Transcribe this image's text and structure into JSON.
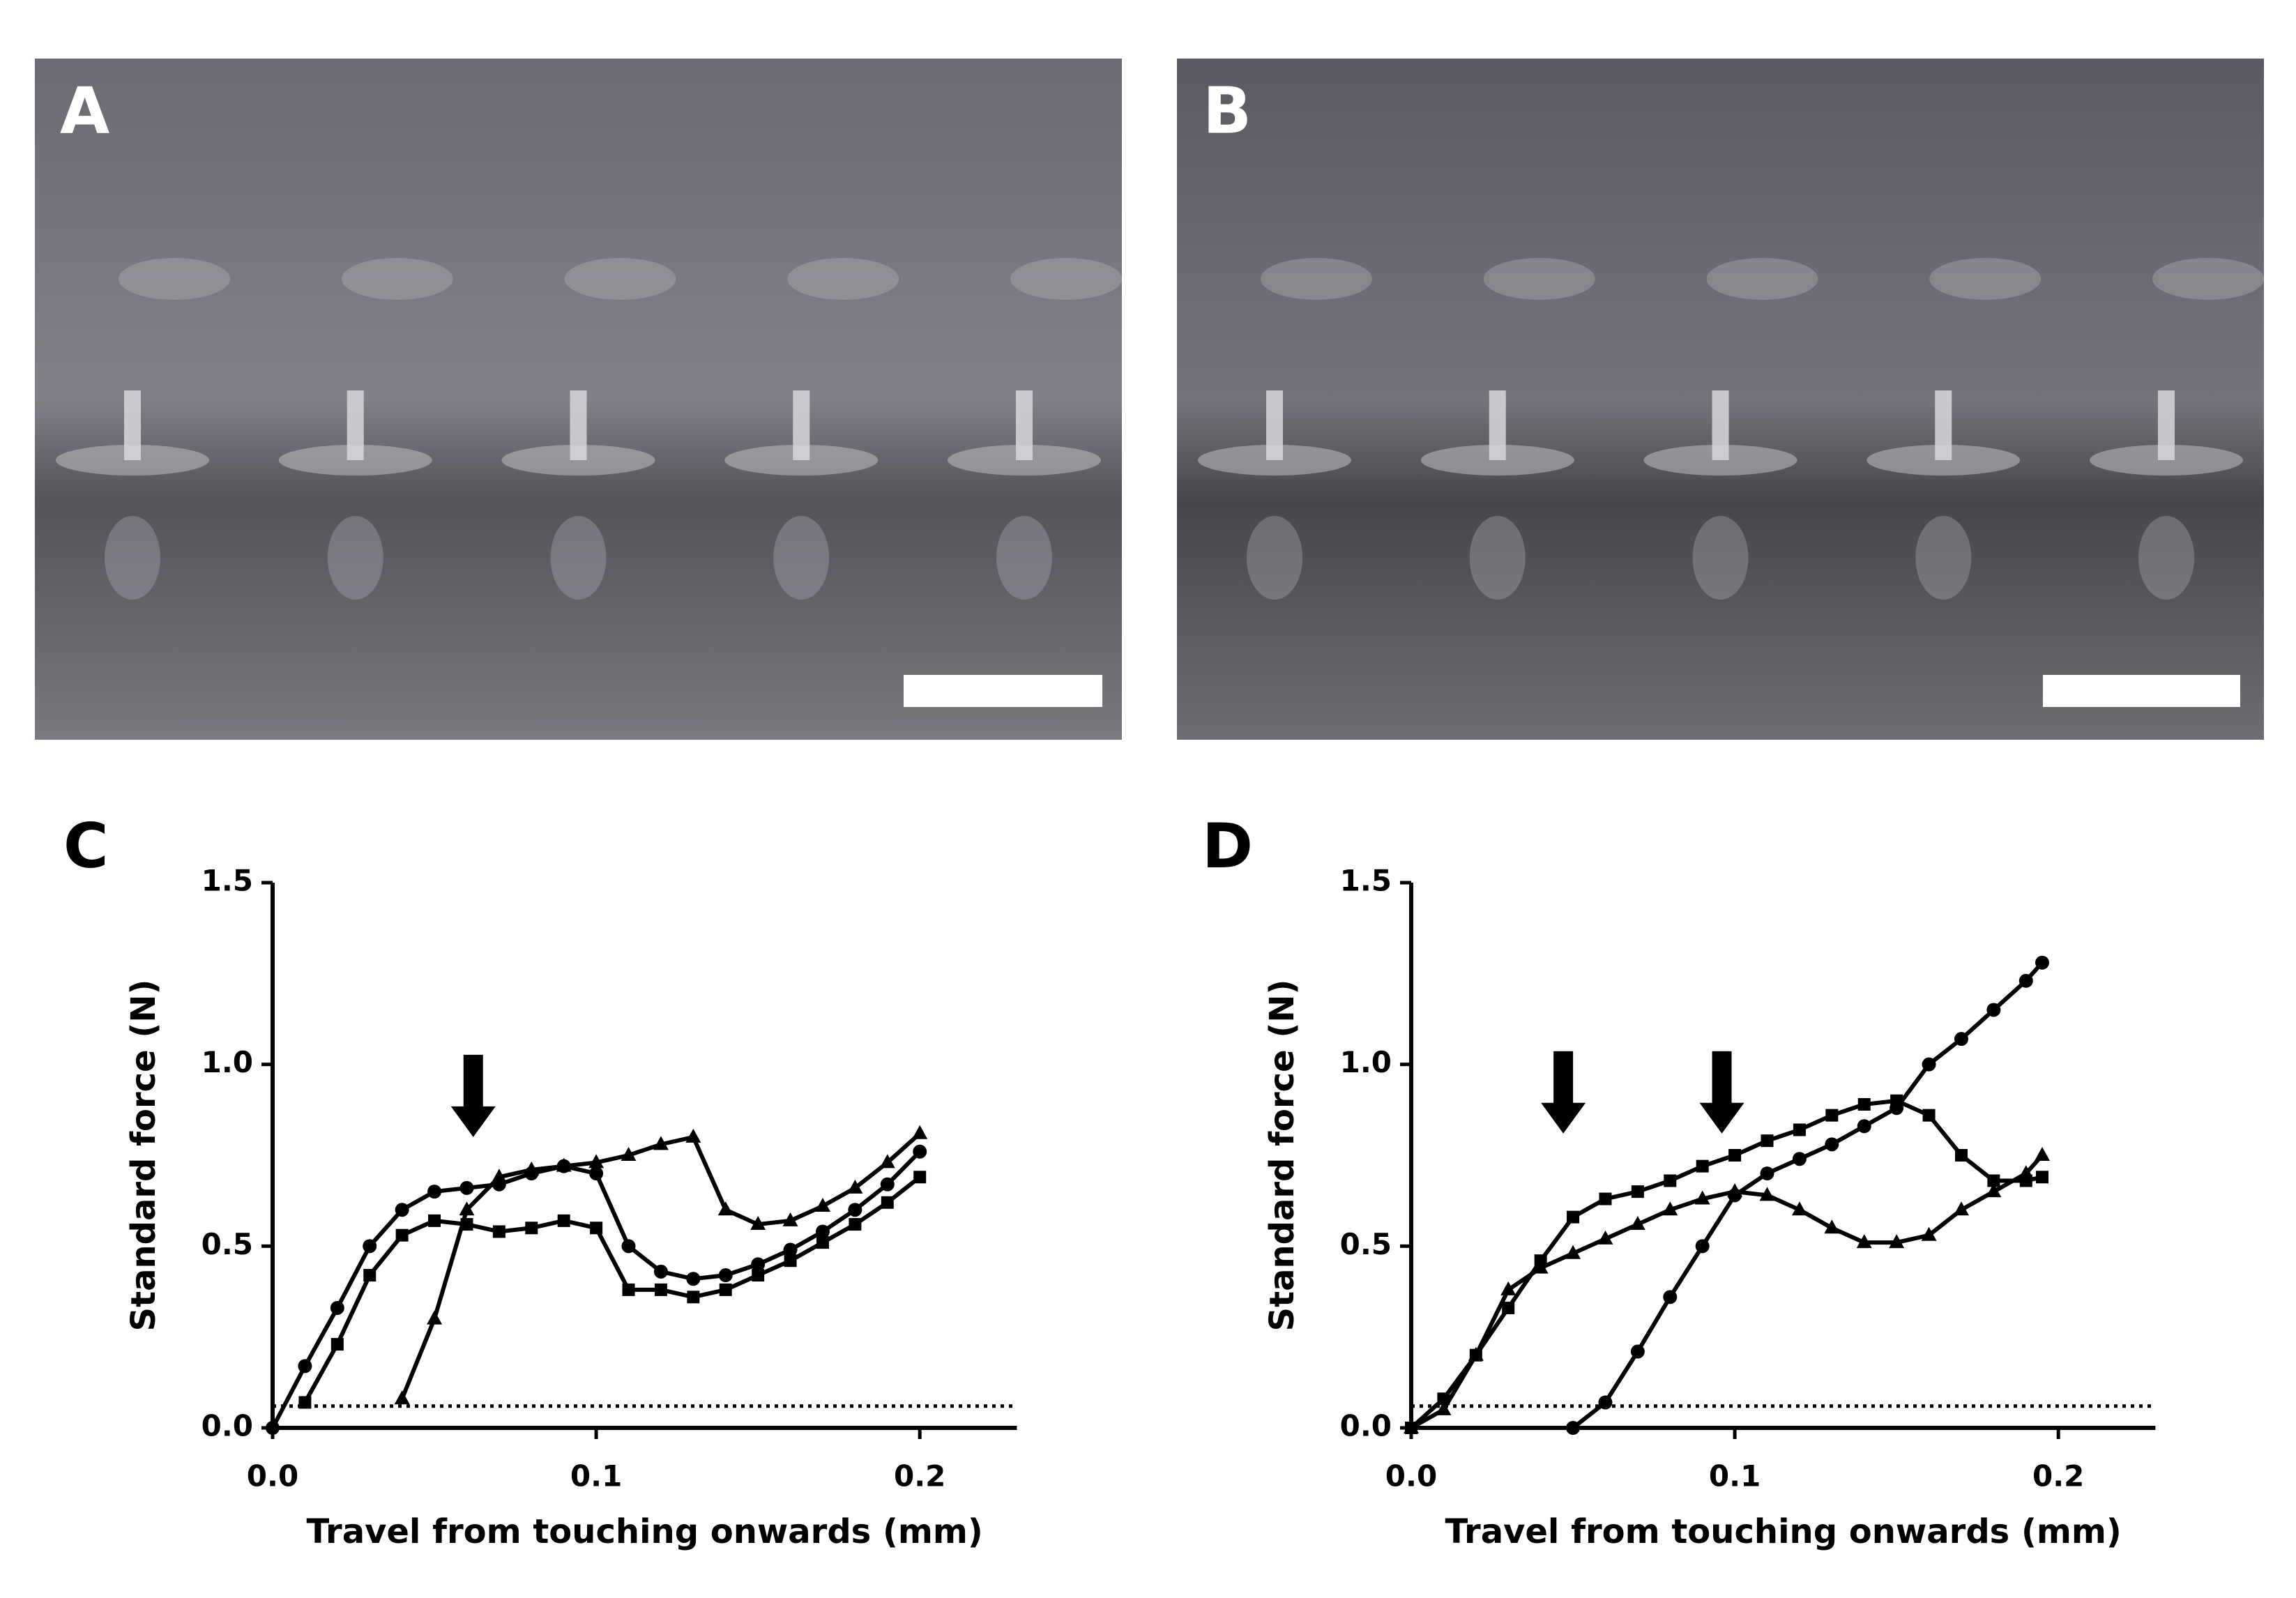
{
  "figure": {
    "panel_labels": [
      "A",
      "B"
    ]
  },
  "chart_data": [
    {
      "type": "line",
      "panel_label": "C",
      "x_label": "Travel from touching onwards (mm)",
      "y_label": "Standard force (N)",
      "xlim": [
        0,
        0.23
      ],
      "ylim": [
        0,
        1.5
      ],
      "xticks": [
        {
          "value": 0,
          "label": "0.0"
        },
        0.1,
        0.2
      ],
      "yticks": [
        {
          "value": 0,
          "label": "0.0"
        },
        0.5,
        {
          "value": 1,
          "label": "1.0"
        },
        1.5
      ],
      "threshold": 0.06,
      "arrows": [
        {
          "x": 0.062,
          "y": 0.8
        }
      ],
      "x": [
        0,
        0.01,
        0.02,
        0.03,
        0.04,
        0.05,
        0.06,
        0.07,
        0.08,
        0.09,
        0.1,
        0.11,
        0.12,
        0.13,
        0.14,
        0.15,
        0.16,
        0.17,
        0.18,
        0.19,
        0.2
      ],
      "series": [
        {
          "color": "#000000",
          "marker": "circle",
          "values": [
            0,
            0.17,
            0.33,
            0.5,
            0.6,
            0.65,
            0.66,
            0.67,
            0.7,
            0.72,
            0.7,
            0.5,
            0.43,
            0.41,
            0.42,
            0.45,
            0.49,
            0.54,
            0.6,
            0.67,
            0.76
          ]
        },
        {
          "color": "#000000",
          "marker": "square",
          "values": [
            null,
            0.07,
            0.23,
            0.42,
            0.53,
            0.57,
            0.56,
            0.54,
            0.55,
            0.57,
            0.55,
            0.38,
            0.38,
            0.36,
            0.38,
            0.42,
            0.46,
            0.51,
            0.56,
            0.62,
            0.69
          ]
        },
        {
          "color": "#000000",
          "marker": "triangle",
          "values": [
            null,
            null,
            null,
            null,
            0.08,
            0.3,
            0.6,
            0.69,
            0.71,
            0.72,
            0.73,
            0.75,
            0.78,
            0.8,
            0.6,
            0.56,
            0.57,
            0.61,
            0.66,
            0.73,
            0.81
          ]
        }
      ]
    },
    {
      "type": "line",
      "panel_label": "D",
      "x_label": "Travel from touching onwards (mm)",
      "y_label": "Standard force (N)",
      "xlim": [
        0,
        0.23
      ],
      "ylim": [
        0,
        1.5
      ],
      "xticks": [
        {
          "value": 0,
          "label": "0.0"
        },
        0.1,
        0.2
      ],
      "yticks": [
        {
          "value": 0,
          "label": "0.0"
        },
        0.5,
        {
          "value": 1,
          "label": "1.0"
        },
        1.5
      ],
      "threshold": 0.06,
      "arrows": [
        {
          "x": 0.047,
          "y": 0.81
        },
        {
          "x": 0.096,
          "y": 0.81
        }
      ],
      "x": [
        0,
        0.01,
        0.02,
        0.03,
        0.04,
        0.05,
        0.06,
        0.07,
        0.08,
        0.09,
        0.1,
        0.11,
        0.12,
        0.13,
        0.14,
        0.15,
        0.16,
        0.17,
        0.18,
        0.19,
        0.195
      ],
      "series": [
        {
          "color": "#000000",
          "marker": "square",
          "values": [
            0,
            0.08,
            0.2,
            0.33,
            0.46,
            0.58,
            0.63,
            0.65,
            0.68,
            0.72,
            0.75,
            0.79,
            0.82,
            0.86,
            0.89,
            0.9,
            0.86,
            0.75,
            0.68,
            0.68,
            0.69
          ]
        },
        {
          "color": "#000000",
          "marker": "triangle",
          "values": [
            0,
            0.05,
            0.2,
            0.38,
            0.44,
            0.48,
            0.52,
            0.56,
            0.6,
            0.63,
            0.65,
            0.64,
            0.6,
            0.55,
            0.51,
            0.51,
            0.53,
            0.6,
            0.65,
            0.7,
            0.75
          ]
        },
        {
          "color": "#000000",
          "marker": "circle",
          "values": [
            null,
            null,
            null,
            null,
            null,
            0,
            0.07,
            0.21,
            0.36,
            0.5,
            0.64,
            0.7,
            0.74,
            0.78,
            0.83,
            0.88,
            1.0,
            1.07,
            1.15,
            1.23,
            1.28
          ]
        }
      ]
    }
  ]
}
